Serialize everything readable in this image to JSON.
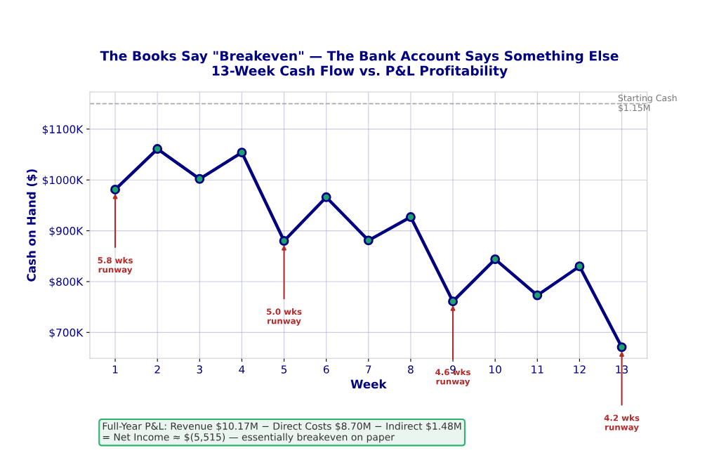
{
  "chart_data": {
    "type": "line",
    "title": "The Books Say \"Breakeven\" — The Bank Account Says Something Else\n13-Week Cash Flow vs. P&L Profitability",
    "xlabel": "Week",
    "ylabel": "Cash on Hand ($)",
    "x": [
      1,
      2,
      3,
      4,
      5,
      6,
      7,
      8,
      9,
      10,
      11,
      12,
      13
    ],
    "series": [
      {
        "color": "#000080",
        "values": [
          981,
          1061,
          1002,
          1054,
          880,
          966,
          881,
          927,
          761,
          844,
          773,
          830,
          671
        ]
      }
    ],
    "xlim": [
      0.4,
      13.6
    ],
    "xticks": [
      1,
      2,
      3,
      4,
      5,
      6,
      7,
      8,
      9,
      10,
      11,
      12,
      13
    ],
    "ylim": [
      649,
      1173
    ],
    "yticks": [
      {
        "value": 700,
        "label": "$700K"
      },
      {
        "value": 800,
        "label": "$800K"
      },
      {
        "value": 900,
        "label": "$900K"
      },
      {
        "value": 1000,
        "label": "$1000K"
      },
      {
        "value": 1100,
        "label": "$1100K"
      }
    ],
    "ref_lines": [
      {
        "axis": "y",
        "value": 1150,
        "label": "Starting Cash\n$1.15M",
        "color": "#aaaaaa",
        "line_style": "dashed"
      }
    ],
    "annotations": [
      {
        "text": "5.8 wks\nrunway",
        "x": 1,
        "y": 981
      },
      {
        "text": "5.0 wks\nrunway",
        "x": 5,
        "y": 880
      },
      {
        "text": "4.6 wks\nrunway",
        "x": 9,
        "y": 761
      },
      {
        "text": "4.2 wks\nrunway",
        "x": 13,
        "y": 671
      },
      "Full-Year P&L: Revenue $10.17M − Direct Costs $8.70M − Indirect $1.48M\n= Net Income ≈ $(5,515) — essentially breakeven on paper"
    ],
    "grid": true,
    "marker": "circle",
    "line_style": "solid"
  }
}
